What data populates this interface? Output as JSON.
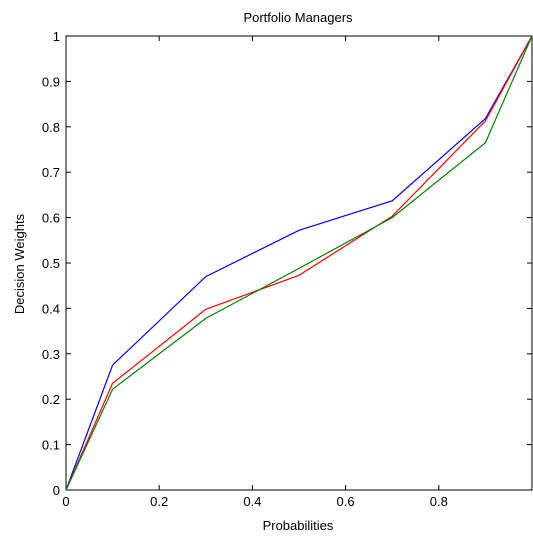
{
  "chart_data": {
    "type": "line",
    "title": "Portfolio Managers",
    "xlabel": "Probabilities",
    "ylabel": "Decision Weights",
    "xlim": [
      0,
      1
    ],
    "ylim": [
      0,
      1
    ],
    "grid": false,
    "legend": "none",
    "x_ticks": [
      0,
      0.2,
      0.4,
      0.6,
      0.8
    ],
    "x_tick_labels": [
      "0",
      "0.2",
      "0.4",
      "0.6",
      "0.8"
    ],
    "y_ticks": [
      0,
      0.1,
      0.2,
      0.3,
      0.4,
      0.5,
      0.6,
      0.7,
      0.8,
      0.9,
      1
    ],
    "y_tick_labels": [
      "0",
      "0.1",
      "0.2",
      "0.3",
      "0.4",
      "0.5",
      "0.6",
      "0.7",
      "0.8",
      "0.9",
      "1"
    ],
    "x": [
      0,
      0.1,
      0.3,
      0.5,
      0.7,
      0.9,
      1
    ],
    "series": [
      {
        "color": "#0000ff",
        "values": [
          0,
          0.275,
          0.47,
          0.572,
          0.637,
          0.818,
          1
        ]
      },
      {
        "color": "#ff0000",
        "values": [
          0,
          0.235,
          0.398,
          0.473,
          0.603,
          0.813,
          1
        ]
      },
      {
        "color": "#008000",
        "values": [
          0,
          0.222,
          0.378,
          0.488,
          0.6,
          0.765,
          1
        ]
      }
    ]
  }
}
